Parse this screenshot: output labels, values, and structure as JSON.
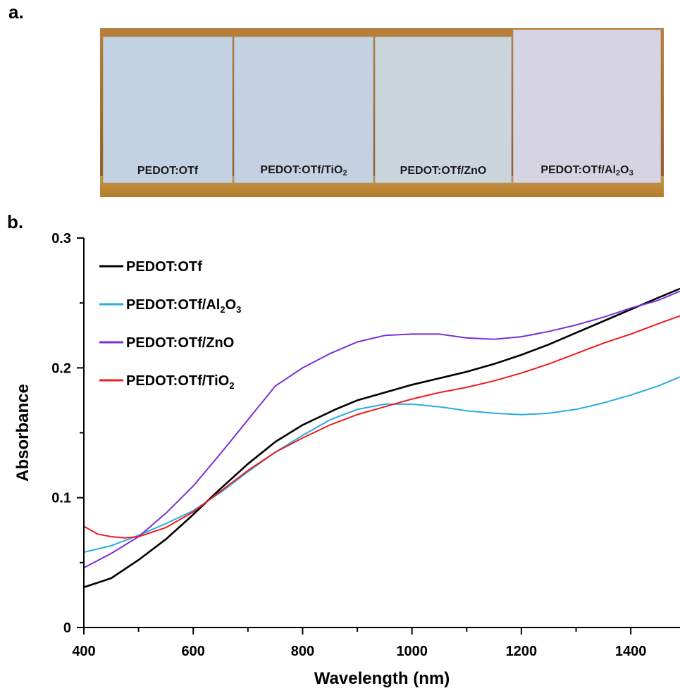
{
  "panel_a": {
    "label": "a.",
    "samples": [
      {
        "name": "PEDOT:OTf",
        "sub": "",
        "color": "#c3d2e3"
      },
      {
        "name": "PEDOT:OTf/TiO",
        "sub": "2",
        "color": "#c3d1e1"
      },
      {
        "name": "PEDOT:OTf/ZnO",
        "sub": "",
        "color": "#cbd6dc"
      },
      {
        "name": "PEDOT:OTf/Al",
        "sub": "2",
        "suffix": "O",
        "sub2": "3",
        "color": "#d6d4e3"
      }
    ]
  },
  "panel_b": {
    "label": "b."
  },
  "chart_data": {
    "type": "line",
    "xlabel": "Wavelength (nm)",
    "ylabel": "Absorbance",
    "xlim": [
      400,
      1490
    ],
    "ylim": [
      0,
      0.3
    ],
    "xticks": [
      400,
      600,
      800,
      1000,
      1200,
      1400
    ],
    "yticks": [
      0,
      0.1,
      0.2,
      0.3
    ],
    "ytick_labels": [
      "0",
      "0.1",
      "0.2",
      "0.3"
    ],
    "legend_position": "top-left",
    "series": [
      {
        "name": "PEDOT:OTf",
        "legend_main": "PEDOT:OTf",
        "color": "#000000",
        "x": [
          400,
          450,
          500,
          550,
          600,
          650,
          700,
          750,
          800,
          850,
          860,
          900,
          950,
          1000,
          1050,
          1100,
          1150,
          1200,
          1250,
          1300,
          1350,
          1400,
          1450,
          1490
        ],
        "y": [
          0.031,
          0.038,
          0.052,
          0.068,
          0.087,
          0.107,
          0.126,
          0.143,
          0.156,
          0.166,
          0.168,
          0.175,
          0.181,
          0.187,
          0.192,
          0.197,
          0.203,
          0.21,
          0.218,
          0.227,
          0.236,
          0.245,
          0.254,
          0.261
        ]
      },
      {
        "name": "PEDOT:OTf/Al2O3",
        "legend_main": "PEDOT:OTf/Al",
        "legend_sub": "2",
        "legend_suffix": "O",
        "legend_sub2": "3",
        "color": "#29abe2",
        "x": [
          400,
          450,
          500,
          550,
          600,
          650,
          700,
          750,
          800,
          850,
          900,
          950,
          1000,
          1050,
          1100,
          1150,
          1200,
          1250,
          1300,
          1350,
          1400,
          1450,
          1490
        ],
        "y": [
          0.058,
          0.063,
          0.071,
          0.08,
          0.09,
          0.104,
          0.12,
          0.135,
          0.148,
          0.16,
          0.168,
          0.172,
          0.172,
          0.17,
          0.167,
          0.165,
          0.164,
          0.165,
          0.168,
          0.173,
          0.179,
          0.186,
          0.193
        ]
      },
      {
        "name": "PEDOT:OTf/ZnO",
        "legend_main": "PEDOT:OTf/ZnO",
        "color": "#7a2fd6",
        "x": [
          400,
          450,
          500,
          550,
          600,
          650,
          700,
          750,
          800,
          850,
          900,
          950,
          1000,
          1050,
          1100,
          1150,
          1200,
          1250,
          1300,
          1350,
          1400,
          1450,
          1490
        ],
        "y": [
          0.046,
          0.057,
          0.07,
          0.088,
          0.109,
          0.134,
          0.16,
          0.186,
          0.2,
          0.211,
          0.22,
          0.225,
          0.226,
          0.226,
          0.223,
          0.222,
          0.224,
          0.228,
          0.233,
          0.239,
          0.246,
          0.252,
          0.259
        ]
      },
      {
        "name": "PEDOT:OTf/TiO2",
        "legend_main": "PEDOT:OTf/TiO",
        "legend_sub": "2",
        "color": "#ee1c1c",
        "x": [
          400,
          425,
          450,
          475,
          500,
          550,
          600,
          650,
          700,
          750,
          800,
          850,
          900,
          950,
          1000,
          1050,
          1100,
          1150,
          1200,
          1250,
          1300,
          1350,
          1400,
          1450,
          1490
        ],
        "y": [
          0.078,
          0.072,
          0.07,
          0.069,
          0.07,
          0.077,
          0.089,
          0.105,
          0.121,
          0.135,
          0.146,
          0.156,
          0.164,
          0.17,
          0.176,
          0.181,
          0.185,
          0.19,
          0.196,
          0.203,
          0.211,
          0.219,
          0.226,
          0.234,
          0.24
        ]
      }
    ]
  }
}
